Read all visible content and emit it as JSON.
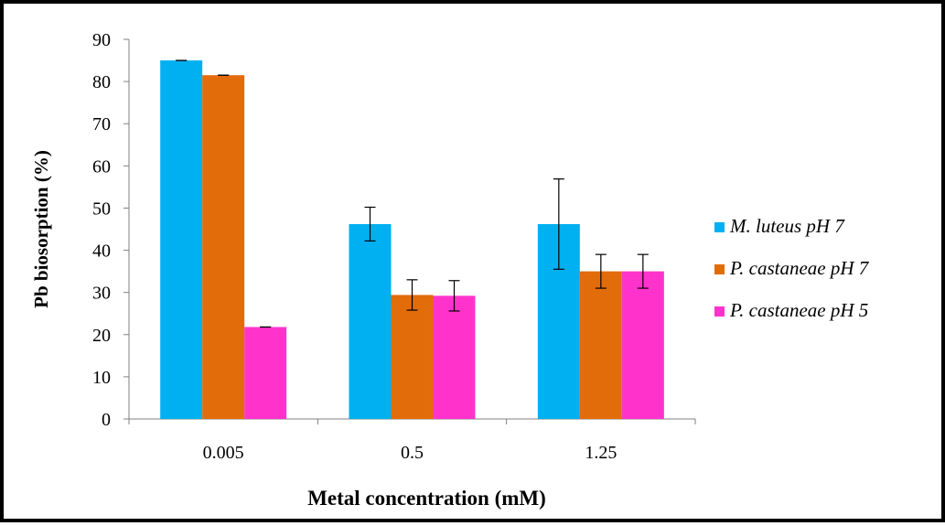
{
  "chart_data": {
    "type": "bar",
    "categories": [
      "0.005",
      "0.5",
      "1.25"
    ],
    "series": [
      {
        "name": "M. luteus pH 7",
        "color": "#00b0f0",
        "values": [
          85,
          46.2,
          46.2
        ],
        "errors": [
          0,
          4,
          10.7
        ]
      },
      {
        "name": "P. castaneae pH 7",
        "color": "#e36c0a",
        "values": [
          81.5,
          29.4,
          35
        ],
        "errors": [
          0,
          3.6,
          4
        ]
      },
      {
        "name": "P. castaneae pH 5",
        "color": "#ff33cc",
        "values": [
          21.8,
          29.2,
          35
        ],
        "errors": [
          0,
          3.6,
          4
        ]
      }
    ],
    "ylim": [
      0,
      90
    ],
    "yticks": [
      "0",
      "10",
      "20",
      "30",
      "40",
      "50",
      "60",
      "70",
      "80",
      "90"
    ],
    "ylabel": "Pb biosorption (%)",
    "xlabel": "Metal concentration (mM)",
    "legend_position": "right",
    "grid": false
  }
}
